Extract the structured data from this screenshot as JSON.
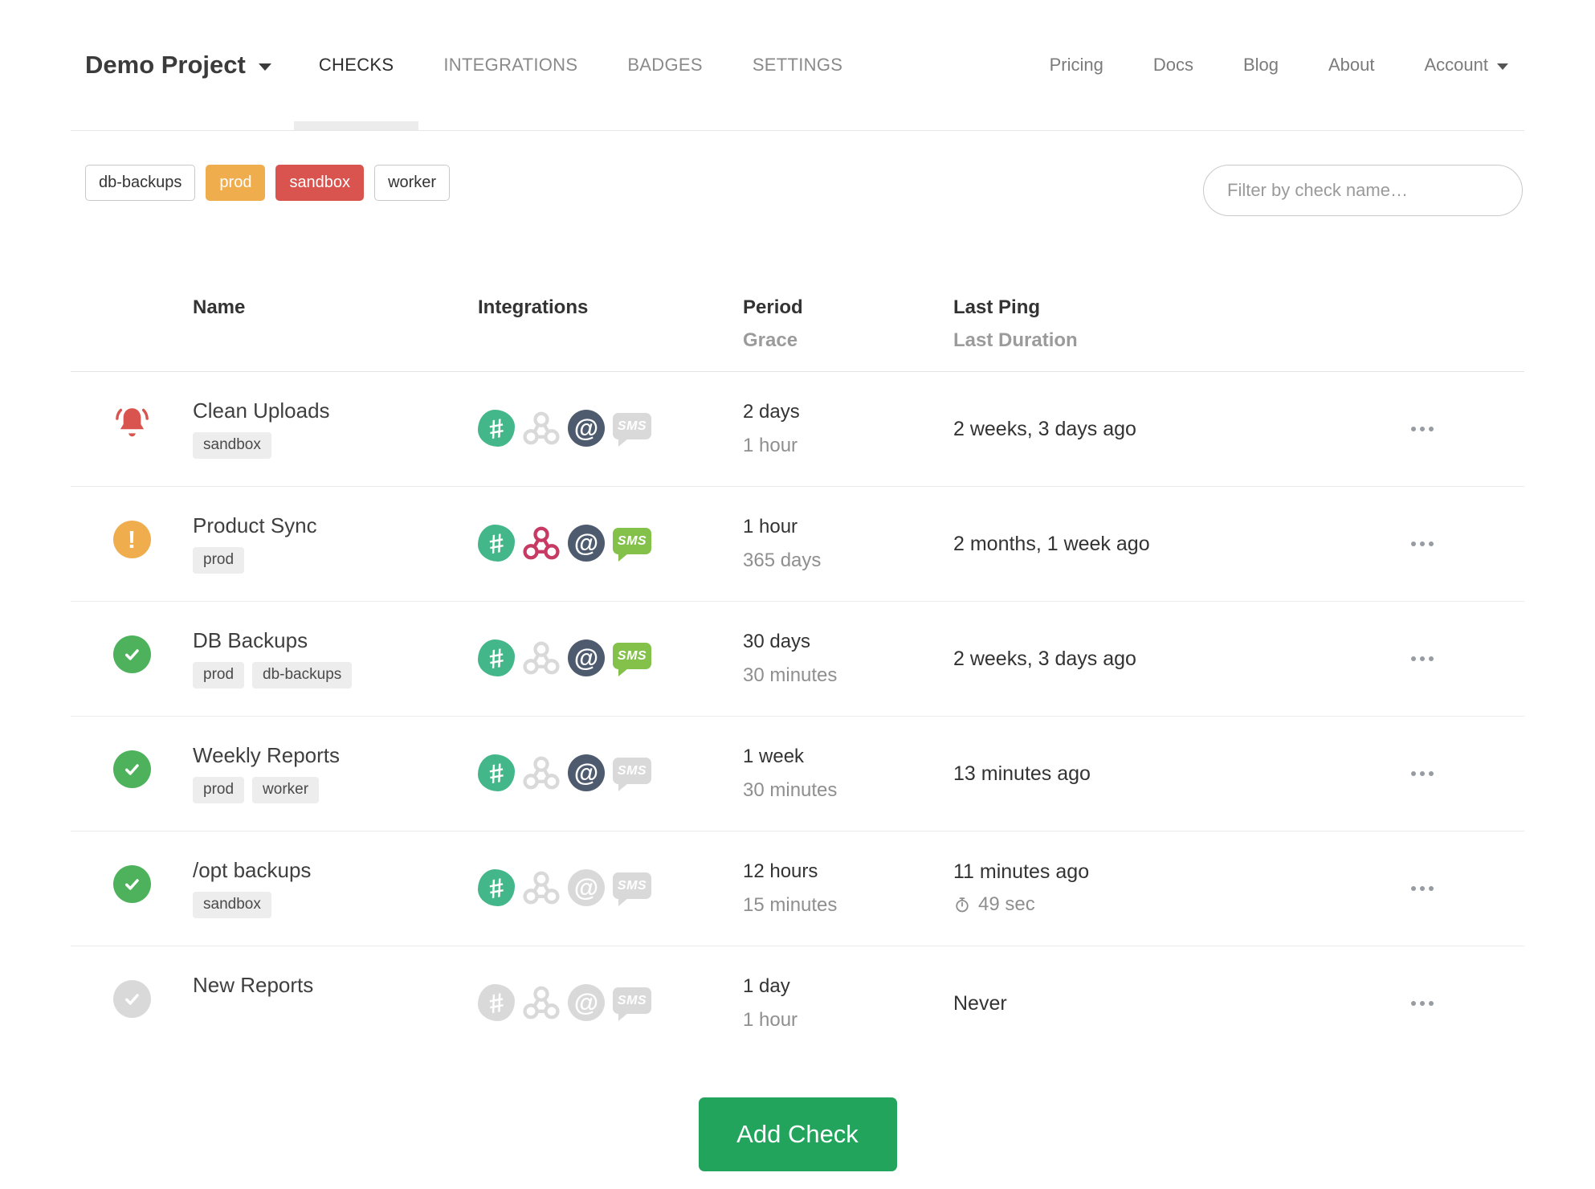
{
  "nav": {
    "project": "Demo Project",
    "tabs": [
      "CHECKS",
      "INTEGRATIONS",
      "BADGES",
      "SETTINGS"
    ],
    "active_tab": "CHECKS",
    "links": [
      {
        "label": "Pricing",
        "caret": false
      },
      {
        "label": "Docs",
        "caret": false
      },
      {
        "label": "Blog",
        "caret": false
      },
      {
        "label": "About",
        "caret": false
      },
      {
        "label": "Account",
        "caret": true
      }
    ]
  },
  "filters": {
    "tags": [
      {
        "label": "db-backups",
        "variant": "default"
      },
      {
        "label": "prod",
        "variant": "orange"
      },
      {
        "label": "sandbox",
        "variant": "red"
      },
      {
        "label": "worker",
        "variant": "default"
      }
    ],
    "search_placeholder": "Filter by check name…"
  },
  "table": {
    "headers": {
      "name": "Name",
      "integrations": "Integrations",
      "period": "Period",
      "grace": "Grace",
      "last_ping": "Last Ping",
      "last_duration": "Last Duration"
    }
  },
  "checks": [
    {
      "name": "Clean Uploads",
      "tags": [
        "sandbox"
      ],
      "status": "down",
      "integrations": {
        "slack": true,
        "webhook": false,
        "email": true,
        "sms": false
      },
      "period": "2 days",
      "grace": "1 hour",
      "last_ping": "2 weeks, 3 days ago",
      "last_duration": null
    },
    {
      "name": "Product Sync",
      "tags": [
        "prod"
      ],
      "status": "grace",
      "integrations": {
        "slack": true,
        "webhook": true,
        "email": true,
        "sms": true
      },
      "period": "1 hour",
      "grace": "365 days",
      "last_ping": "2 months, 1 week ago",
      "last_duration": null
    },
    {
      "name": "DB Backups",
      "tags": [
        "prod",
        "db-backups"
      ],
      "status": "up",
      "integrations": {
        "slack": true,
        "webhook": false,
        "email": true,
        "sms": true
      },
      "period": "30 days",
      "grace": "30 minutes",
      "last_ping": "2 weeks, 3 days ago",
      "last_duration": null
    },
    {
      "name": "Weekly Reports",
      "tags": [
        "prod",
        "worker"
      ],
      "status": "up",
      "integrations": {
        "slack": true,
        "webhook": false,
        "email": true,
        "sms": false
      },
      "period": "1 week",
      "grace": "30 minutes",
      "last_ping": "13 minutes ago",
      "last_duration": null
    },
    {
      "name": "/opt backups",
      "tags": [
        "sandbox"
      ],
      "status": "up",
      "integrations": {
        "slack": true,
        "webhook": false,
        "email": false,
        "sms": false
      },
      "period": "12 hours",
      "grace": "15 minutes",
      "last_ping": "11 minutes ago",
      "last_duration": "49 sec"
    },
    {
      "name": "New Reports",
      "tags": [],
      "status": "new",
      "integrations": {
        "slack": false,
        "webhook": false,
        "email": false,
        "sms": false
      },
      "period": "1 day",
      "grace": "1 hour",
      "last_ping": "Never",
      "last_duration": null
    }
  ],
  "status_icon_names": {
    "down": "bell-icon",
    "grace": "exclamation-icon",
    "up": "check-icon",
    "new": "check-muted-icon"
  },
  "add_check_label": "Add Check",
  "colors": {
    "red": "#d9534f",
    "orange": "#f0ad4e",
    "ok": "#4db25b",
    "slack": "#43b789",
    "webhook": "#c73a63",
    "email": "#4e5b6e",
    "sms": "#83c14b",
    "inactive": "#d9d9d9",
    "add": "#22a45c"
  }
}
